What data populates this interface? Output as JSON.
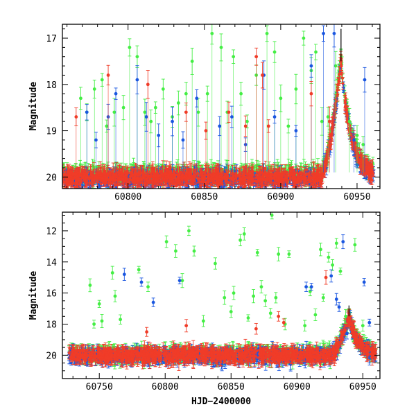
{
  "figure": {
    "xlabel": "HJD−2400000",
    "colors": {
      "green": "#44ee44",
      "blue": "#1a56e0",
      "red": "#f03c28",
      "black": "#000000"
    }
  },
  "chart_data": [
    {
      "type": "scatter",
      "title": "",
      "xlabel": "",
      "ylabel": "Magnitude",
      "xlim": [
        60757,
        60965
      ],
      "ylim": [
        20.25,
        16.7
      ],
      "y_inverted": true,
      "grid": false,
      "legend": "none",
      "x_ticks": [
        60800,
        60850,
        60900,
        60950
      ],
      "y_ticks": [
        17,
        18,
        19,
        20
      ],
      "baseline_magnitude": 20.0,
      "series": [
        {
          "color": "green",
          "outburst_points": [
            [
              60769,
              18.3
            ],
            [
              60773,
              18.6
            ],
            [
              60778,
              18.1
            ],
            [
              60783,
              17.9
            ],
            [
              60786,
              18.9
            ],
            [
              60791,
              18.6
            ],
            [
              60797,
              18.5
            ],
            [
              60801,
              17.2
            ],
            [
              60806,
              17.4
            ],
            [
              60811,
              18.6
            ],
            [
              60815,
              18.8
            ],
            [
              60818,
              18.5
            ],
            [
              60823,
              18.1
            ],
            [
              60829,
              18.7
            ],
            [
              60833,
              18.4
            ],
            [
              60838,
              18.2
            ],
            [
              60842,
              17.5
            ],
            [
              60846,
              18.6
            ],
            [
              60852,
              18.2
            ],
            [
              60855,
              16.9
            ],
            [
              60861,
              17.2
            ],
            [
              60865,
              18.6
            ],
            [
              60869,
              17.4
            ],
            [
              60874,
              18.2
            ],
            [
              60878,
              18.8
            ],
            [
              60884,
              17.8
            ],
            [
              60891,
              16.9
            ],
            [
              60896,
              17.3
            ],
            [
              60900,
              18.3
            ],
            [
              60905,
              18.9
            ],
            [
              60910,
              18.1
            ],
            [
              60915,
              17.0
            ],
            [
              60920,
              17.7
            ],
            [
              60923,
              17.3
            ],
            [
              60927,
              18.8
            ],
            [
              60931,
              18.7
            ],
            [
              60936,
              17.6
            ],
            [
              60945,
              18.8
            ],
            [
              60950,
              19.1
            ],
            [
              60954,
              19.3
            ]
          ]
        },
        {
          "color": "blue",
          "outburst_points": [
            [
              60773,
              18.6
            ],
            [
              60779,
              19.2
            ],
            [
              60787,
              18.7
            ],
            [
              60792,
              18.2
            ],
            [
              60806,
              17.9
            ],
            [
              60812,
              18.7
            ],
            [
              60820,
              19.1
            ],
            [
              60829,
              18.8
            ],
            [
              60836,
              19.2
            ],
            [
              60845,
              18.3
            ],
            [
              60860,
              18.9
            ],
            [
              60868,
              18.7
            ],
            [
              60877,
              19.3
            ],
            [
              60889,
              17.8
            ],
            [
              60896,
              18.7
            ],
            [
              60910,
              19.0
            ],
            [
              60920,
              17.6
            ],
            [
              60928,
              16.9
            ],
            [
              60935,
              16.9
            ],
            [
              60948,
              19.2
            ],
            [
              60955,
              17.9
            ]
          ]
        },
        {
          "color": "red",
          "outburst_points": [
            [
              60766,
              18.7
            ],
            [
              60787,
              17.8
            ],
            [
              60813,
              18.0
            ],
            [
              60838,
              18.6
            ],
            [
              60851,
              19.0
            ],
            [
              60866,
              18.6
            ],
            [
              60877,
              18.9
            ],
            [
              60884,
              17.4
            ],
            [
              60888,
              17.8
            ],
            [
              60892,
              18.9
            ],
            [
              60920,
              18.2
            ],
            [
              60932,
              18.8
            ]
          ]
        }
      ],
      "feature": {
        "peak_time": 60939.5,
        "peak_magnitude": 17.5,
        "rise_start": 60926,
        "decline_end": 60962
      }
    },
    {
      "type": "scatter",
      "title": "",
      "xlabel": "HJD−2400000",
      "ylabel": "Magnitude",
      "xlim": [
        60722,
        60963
      ],
      "ylim": [
        21.5,
        10.8
      ],
      "y_inverted": true,
      "grid": false,
      "legend": "none",
      "x_ticks": [
        60750,
        60800,
        60850,
        60900,
        60950
      ],
      "y_ticks": [
        12,
        14,
        16,
        18,
        20
      ],
      "baseline_magnitude": 20.0,
      "series": [
        {
          "color": "green",
          "outburst_points": [
            [
              60743,
              15.5
            ],
            [
              60746,
              18.0
            ],
            [
              60750,
              16.7
            ],
            [
              60752,
              17.8
            ],
            [
              60760,
              14.7
            ],
            [
              60762,
              16.2
            ],
            [
              60766,
              17.7
            ],
            [
              60780,
              14.5
            ],
            [
              60787,
              15.6
            ],
            [
              60801,
              12.7
            ],
            [
              60808,
              13.3
            ],
            [
              60813,
              15.2
            ],
            [
              60818,
              12.0
            ],
            [
              60822,
              13.3
            ],
            [
              60829,
              17.8
            ],
            [
              60838,
              14.1
            ],
            [
              60845,
              16.3
            ],
            [
              60850,
              17.2
            ],
            [
              60852,
              16.0
            ],
            [
              60857,
              12.6
            ],
            [
              60860,
              12.2
            ],
            [
              60863,
              17.6
            ],
            [
              60867,
              16.2
            ],
            [
              60870,
              13.4
            ],
            [
              60873,
              15.6
            ],
            [
              60876,
              16.5
            ],
            [
              60880,
              17.3
            ],
            [
              60881,
              11.0
            ],
            [
              60884,
              16.3
            ],
            [
              60886,
              13.5
            ],
            [
              60891,
              18.0
            ],
            [
              60894,
              13.5
            ],
            [
              60906,
              18.1
            ],
            [
              60910,
              15.9
            ],
            [
              60914,
              17.4
            ],
            [
              60918,
              13.2
            ],
            [
              60920,
              16.3
            ],
            [
              60924,
              13.7
            ],
            [
              60927,
              14.2
            ],
            [
              60930,
              12.8
            ],
            [
              60933,
              14.6
            ],
            [
              60937,
              17.5
            ],
            [
              60944,
              12.9
            ],
            [
              60950,
              18.1
            ]
          ]
        },
        {
          "color": "blue",
          "outburst_points": [
            [
              60769,
              14.8
            ],
            [
              60782,
              15.3
            ],
            [
              60791,
              16.6
            ],
            [
              60811,
              15.2
            ],
            [
              60907,
              15.6
            ],
            [
              60911,
              15.6
            ],
            [
              60926,
              14.9
            ],
            [
              60930,
              16.4
            ],
            [
              60932,
              16.9
            ],
            [
              60935,
              12.7
            ],
            [
              60938,
              18.6
            ],
            [
              60951,
              15.3
            ],
            [
              60955,
              17.9
            ]
          ]
        },
        {
          "color": "red",
          "outburst_points": [
            [
              60731,
              20.0
            ],
            [
              60750,
              19.8
            ],
            [
              60762,
              20.0
            ],
            [
              60786,
              18.5
            ],
            [
              60816,
              18.1
            ],
            [
              60869,
              18.3
            ],
            [
              60886,
              17.5
            ],
            [
              60890,
              17.9
            ],
            [
              60922,
              15.0
            ],
            [
              60930,
              19.3
            ]
          ]
        }
      ],
      "feature": {
        "peak_time": 60939.5,
        "peak_magnitude": 17.5,
        "rise_start": 60926,
        "decline_end": 60960
      }
    }
  ]
}
